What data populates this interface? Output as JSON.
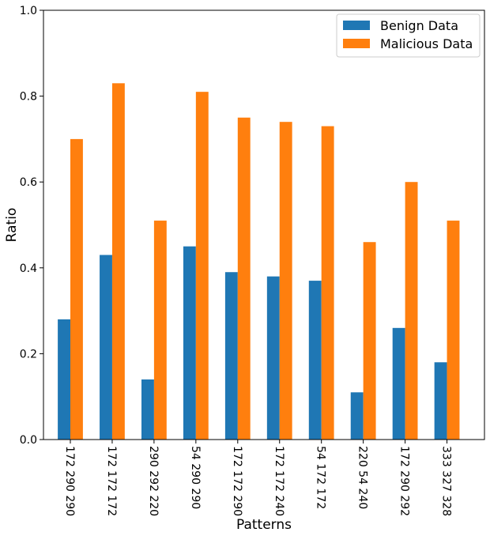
{
  "chart_data": {
    "type": "bar",
    "title": "",
    "xlabel": "Patterns",
    "ylabel": "Ratio",
    "ylim": [
      0,
      1.0
    ],
    "yticks": [
      "0.0",
      "0.2",
      "0.4",
      "0.6",
      "0.8",
      "1.0"
    ],
    "categories": [
      "172 290 290",
      "172 172 172",
      "290 292 220",
      "54 290 290",
      "172 172 290",
      "172 172 240",
      "54 172 172",
      "220 54 240",
      "172 290 292",
      "333 327 328"
    ],
    "series": [
      {
        "name": "Benign Data",
        "color": "#1f77b4",
        "values": [
          0.28,
          0.43,
          0.14,
          0.45,
          0.39,
          0.38,
          0.37,
          0.11,
          0.26,
          0.18
        ]
      },
      {
        "name": "Malicious Data",
        "color": "#ff7f0e",
        "values": [
          0.7,
          0.83,
          0.51,
          0.81,
          0.75,
          0.74,
          0.73,
          0.46,
          0.6,
          0.51
        ]
      }
    ],
    "grid": false,
    "legend": "top-right",
    "xtick_rotation": "vertical (reads top to bottom)"
  }
}
